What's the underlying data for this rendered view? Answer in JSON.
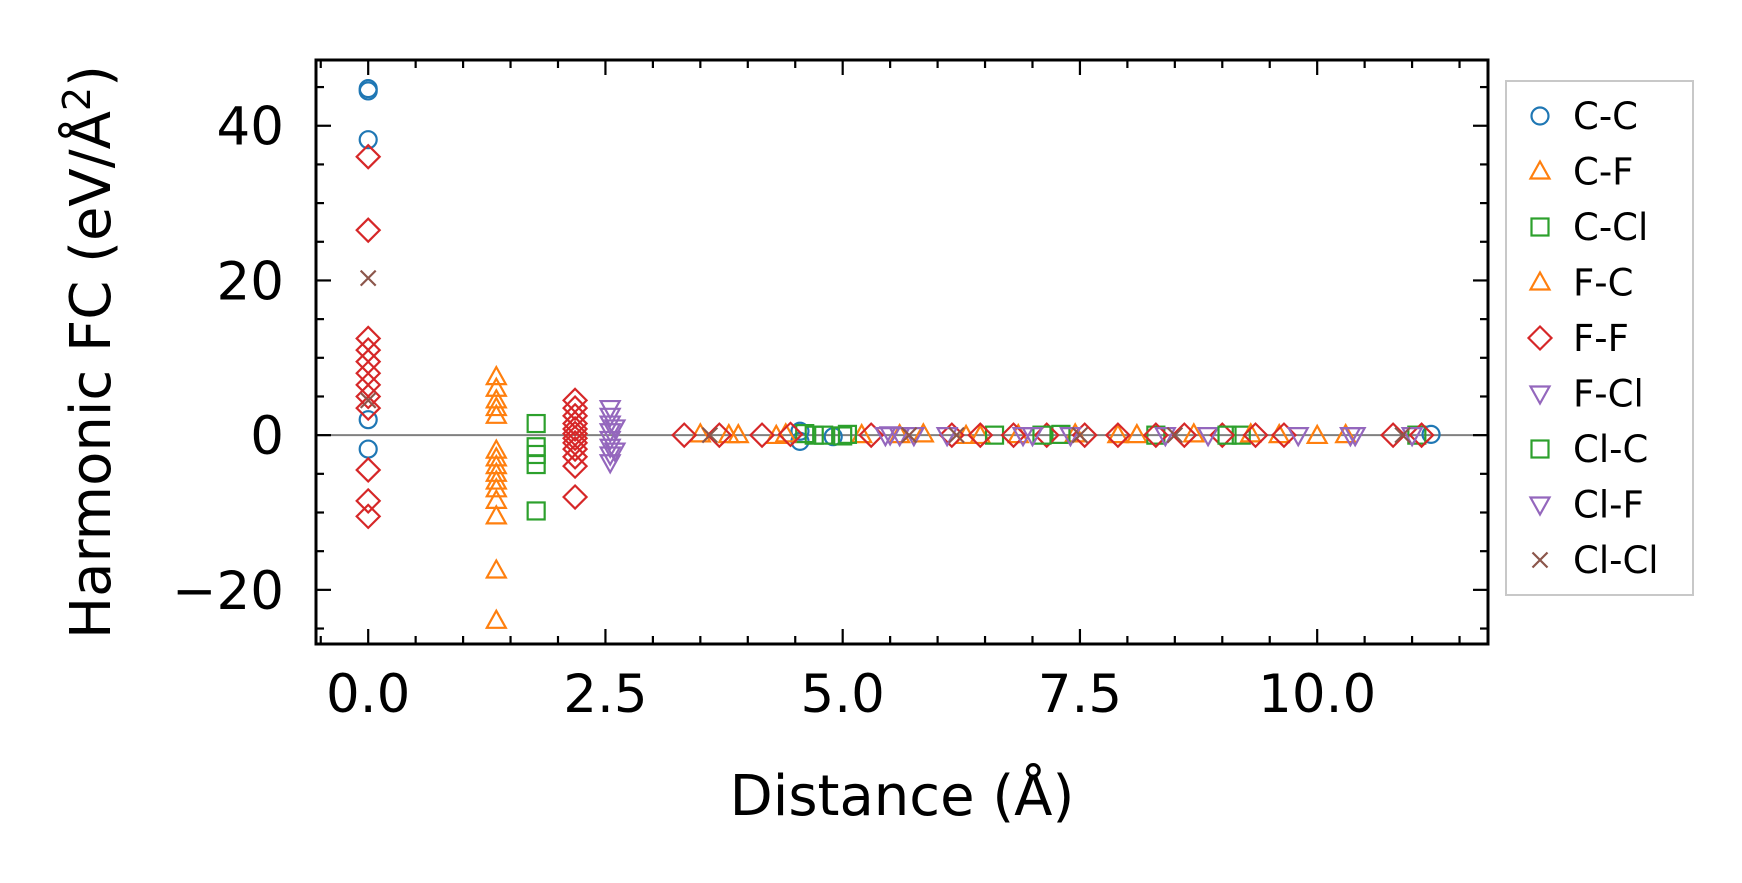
{
  "chart_data": {
    "type": "scatter",
    "title": "",
    "xlabel": "Distance (Å)",
    "ylabel": "Harmonic FC (eV/Å²)",
    "ylabel_parts": {
      "base": "Harmonic FC (eV/Å",
      "sup": "2",
      "close": ")"
    },
    "xlim": [
      -0.55,
      11.8
    ],
    "ylim": [
      -27,
      48.5
    ],
    "xticks": [
      0.0,
      2.5,
      5.0,
      7.5,
      10.0
    ],
    "xtick_labels": [
      "0.0",
      "2.5",
      "5.0",
      "7.5",
      "10.0"
    ],
    "yticks": [
      -20,
      0,
      20,
      40
    ],
    "ytick_labels": [
      "−20",
      "0",
      "20",
      "40"
    ],
    "x_minor_step": 0.5,
    "y_minor_step": 5,
    "zero_line": true,
    "legend_position": "outside-right",
    "series": [
      {
        "name": "C-C",
        "marker": "circle",
        "color": "#1f77b4",
        "points": [
          [
            0,
            44.8
          ],
          [
            0,
            44.5
          ],
          [
            0,
            38.2
          ],
          [
            0,
            2.0
          ],
          [
            0,
            -1.8
          ],
          [
            4.55,
            -0.8
          ],
          [
            4.55,
            0.5
          ],
          [
            4.9,
            -0.2
          ],
          [
            11.2,
            0.1
          ]
        ]
      },
      {
        "name": "C-F",
        "marker": "triangle-up",
        "color": "#ff7f0e",
        "points": [
          [
            1.35,
            7.5
          ],
          [
            1.35,
            6.0
          ],
          [
            1.35,
            4.5
          ],
          [
            1.35,
            3.5
          ],
          [
            1.35,
            2.5
          ],
          [
            1.35,
            -2.0
          ],
          [
            1.35,
            -3.0
          ],
          [
            1.35,
            -4.0
          ],
          [
            1.35,
            -5.0
          ],
          [
            1.35,
            -6.0
          ],
          [
            1.35,
            -7.0
          ],
          [
            1.35,
            -8.5
          ],
          [
            1.35,
            -10.5
          ],
          [
            1.35,
            -17.5
          ],
          [
            1.35,
            -24.0
          ],
          [
            3.5,
            0.1
          ],
          [
            3.9,
            0.0
          ],
          [
            4.3,
            -0.1
          ],
          [
            5.2,
            0.0
          ],
          [
            5.85,
            0.1
          ],
          [
            6.45,
            -0.1
          ],
          [
            6.85,
            0.0
          ],
          [
            7.45,
            0.1
          ],
          [
            8.1,
            0.0
          ],
          [
            8.7,
            0.1
          ],
          [
            9.6,
            0.0
          ],
          [
            10.0,
            -0.1
          ],
          [
            10.3,
            0.0
          ]
        ]
      },
      {
        "name": "C-Cl",
        "marker": "square",
        "color": "#2ca02c",
        "points": [
          [
            1.77,
            1.5
          ],
          [
            1.77,
            -1.5
          ],
          [
            1.77,
            -2.5
          ],
          [
            1.77,
            -3.8
          ],
          [
            1.77,
            -9.8
          ],
          [
            4.6,
            0.2
          ],
          [
            4.8,
            0.0
          ],
          [
            5.0,
            -0.1
          ],
          [
            6.6,
            0.0
          ],
          [
            7.3,
            0.1
          ],
          [
            8.3,
            0.0
          ],
          [
            9.2,
            0.0
          ],
          [
            11.05,
            0.0
          ]
        ]
      },
      {
        "name": "F-C",
        "marker": "triangle-up",
        "color": "#ff7f0e",
        "points": [
          [
            3.8,
            0.0
          ],
          [
            4.4,
            0.1
          ],
          [
            5.6,
            0.0
          ],
          [
            6.3,
            -0.1
          ],
          [
            7.9,
            0.0
          ],
          [
            9.3,
            0.1
          ]
        ]
      },
      {
        "name": "F-F",
        "marker": "diamond",
        "color": "#d62728",
        "points": [
          [
            0,
            36.0
          ],
          [
            0,
            26.5
          ],
          [
            0,
            12.5
          ],
          [
            0,
            11.0
          ],
          [
            0,
            9.5
          ],
          [
            0,
            8.0
          ],
          [
            0,
            6.5
          ],
          [
            0,
            5.0
          ],
          [
            0,
            3.5
          ],
          [
            0,
            -4.5
          ],
          [
            0,
            -8.5
          ],
          [
            0,
            -10.5
          ],
          [
            2.18,
            4.5
          ],
          [
            2.18,
            3.5
          ],
          [
            2.18,
            2.5
          ],
          [
            2.18,
            1.5
          ],
          [
            2.18,
            0.8
          ],
          [
            2.18,
            0.2
          ],
          [
            2.18,
            -0.4
          ],
          [
            2.18,
            -1.0
          ],
          [
            2.18,
            -1.8
          ],
          [
            2.18,
            -2.8
          ],
          [
            2.18,
            -4.0
          ],
          [
            2.18,
            -8.0
          ],
          [
            3.33,
            0.0
          ],
          [
            3.7,
            0.0
          ],
          [
            4.15,
            0.0
          ],
          [
            4.45,
            0.1
          ],
          [
            5.3,
            0.0
          ],
          [
            6.15,
            0.0
          ],
          [
            6.45,
            0.0
          ],
          [
            6.8,
            0.0
          ],
          [
            7.15,
            0.0
          ],
          [
            7.55,
            0.0
          ],
          [
            7.9,
            0.0
          ],
          [
            8.3,
            0.0
          ],
          [
            8.6,
            0.0
          ],
          [
            9.0,
            0.0
          ],
          [
            9.35,
            0.0
          ],
          [
            9.65,
            0.0
          ],
          [
            10.8,
            0.0
          ],
          [
            11.1,
            0.0
          ]
        ]
      },
      {
        "name": "F-Cl",
        "marker": "triangle-down",
        "color": "#9467bd",
        "points": [
          [
            2.55,
            3.5
          ],
          [
            2.55,
            2.5
          ],
          [
            2.55,
            1.5
          ],
          [
            2.55,
            0.5
          ],
          [
            2.55,
            -0.5
          ],
          [
            2.55,
            -1.5
          ],
          [
            2.55,
            -2.5
          ],
          [
            2.55,
            -3.5
          ],
          [
            5.45,
            0.0
          ],
          [
            5.6,
            0.0
          ],
          [
            5.75,
            0.0
          ],
          [
            6.9,
            0.0
          ],
          [
            7.4,
            0.0
          ],
          [
            8.85,
            0.0
          ],
          [
            9.8,
            0.0
          ],
          [
            10.4,
            0.0
          ]
        ]
      },
      {
        "name": "Cl-C",
        "marker": "square",
        "color": "#2ca02c",
        "points": [
          [
            4.7,
            0.0
          ],
          [
            5.05,
            0.1
          ],
          [
            7.1,
            0.0
          ],
          [
            9.05,
            0.0
          ]
        ]
      },
      {
        "name": "Cl-F",
        "marker": "triangle-down",
        "color": "#9467bd",
        "points": [
          [
            2.6,
            1.0
          ],
          [
            2.6,
            -2.0
          ],
          [
            5.5,
            0.1
          ],
          [
            6.1,
            0.0
          ],
          [
            7.0,
            0.0
          ],
          [
            8.4,
            0.0
          ],
          [
            10.35,
            0.0
          ],
          [
            11.0,
            0.0
          ]
        ]
      },
      {
        "name": "Cl-Cl",
        "marker": "x",
        "color": "#8c564b",
        "points": [
          [
            0,
            20.3
          ],
          [
            0,
            4.5
          ],
          [
            3.6,
            0.0
          ],
          [
            5.7,
            0.0
          ],
          [
            6.2,
            0.0
          ],
          [
            7.5,
            0.0
          ],
          [
            8.5,
            0.0
          ],
          [
            10.9,
            0.0
          ]
        ]
      }
    ]
  }
}
